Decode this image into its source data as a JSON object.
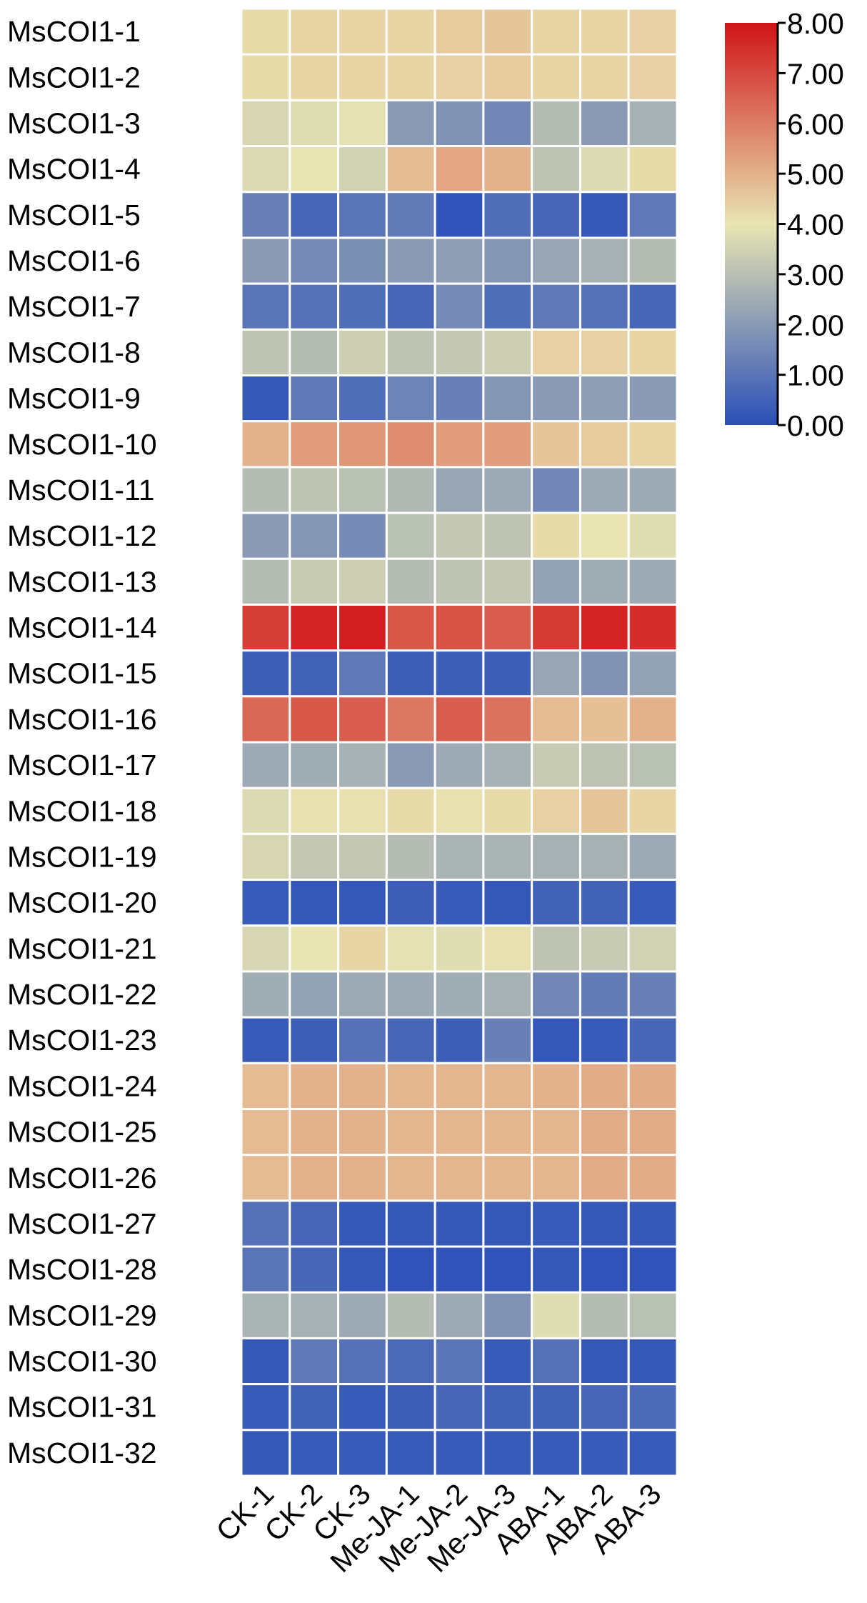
{
  "chart_data": {
    "type": "heatmap",
    "title": "",
    "xlabel": "",
    "ylabel": "",
    "columns": [
      "CK-1",
      "CK-2",
      "CK-3",
      "Me-JA-1",
      "Me-JA-2",
      "Me-JA-3",
      "ABA-1",
      "ABA-2",
      "ABA-3"
    ],
    "rows": [
      "MsCOI1-1",
      "MsCOI1-2",
      "MsCOI1-3",
      "MsCOI1-4",
      "MsCOI1-5",
      "MsCOI1-6",
      "MsCOI1-7",
      "MsCOI1-8",
      "MsCOI1-9",
      "MsCOI1-10",
      "MsCOI1-11",
      "MsCOI1-12",
      "MsCOI1-13",
      "MsCOI1-14",
      "MsCOI1-15",
      "MsCOI1-16",
      "MsCOI1-17",
      "MsCOI1-18",
      "MsCOI1-19",
      "MsCOI1-20",
      "MsCOI1-21",
      "MsCOI1-22",
      "MsCOI1-23",
      "MsCOI1-24",
      "MsCOI1-25",
      "MsCOI1-26",
      "MsCOI1-27",
      "MsCOI1-28",
      "MsCOI1-29",
      "MsCOI1-30",
      "MsCOI1-31",
      "MsCOI1-32"
    ],
    "values": [
      [
        4.2,
        4.3,
        4.3,
        4.3,
        4.5,
        4.6,
        4.3,
        4.3,
        4.4
      ],
      [
        4.2,
        4.3,
        4.3,
        4.3,
        4.4,
        4.5,
        4.3,
        4.3,
        4.4
      ],
      [
        3.6,
        3.8,
        3.9,
        2.0,
        1.8,
        1.5,
        2.9,
        2.0,
        2.6
      ],
      [
        3.7,
        4.0,
        3.5,
        4.8,
        5.2,
        5.0,
        3.1,
        3.7,
        4.2
      ],
      [
        1.3,
        0.6,
        1.0,
        1.2,
        0.1,
        0.8,
        0.6,
        0.2,
        1.1
      ],
      [
        2.0,
        1.6,
        1.7,
        2.0,
        2.1,
        1.9,
        2.3,
        2.6,
        2.9
      ],
      [
        1.0,
        0.9,
        0.8,
        0.6,
        1.6,
        0.8,
        1.1,
        0.9,
        0.6
      ],
      [
        3.1,
        2.9,
        3.4,
        3.1,
        3.2,
        3.4,
        4.4,
        4.4,
        4.3
      ],
      [
        0.2,
        1.1,
        0.8,
        1.4,
        1.3,
        1.9,
        2.0,
        2.1,
        2.0
      ],
      [
        5.0,
        5.4,
        5.5,
        5.7,
        5.4,
        5.4,
        4.6,
        4.5,
        4.3
      ],
      [
        2.9,
        3.1,
        3.0,
        2.8,
        2.3,
        2.4,
        1.5,
        2.4,
        2.4
      ],
      [
        2.0,
        1.9,
        1.6,
        3.0,
        3.2,
        3.1,
        4.2,
        4.0,
        3.8
      ],
      [
        2.9,
        3.3,
        3.4,
        2.9,
        3.1,
        3.2,
        2.2,
        2.5,
        2.4
      ],
      [
        7.2,
        7.7,
        7.8,
        6.7,
        6.8,
        6.6,
        7.3,
        7.7,
        7.5
      ],
      [
        0.4,
        0.5,
        1.1,
        0.4,
        0.4,
        0.4,
        2.3,
        1.8,
        2.2
      ],
      [
        6.4,
        6.7,
        6.6,
        6.1,
        6.6,
        6.2,
        4.8,
        4.7,
        5.0
      ],
      [
        2.4,
        2.5,
        2.6,
        2.0,
        2.4,
        2.6,
        3.3,
        3.1,
        3.0
      ],
      [
        3.7,
        4.1,
        4.1,
        4.2,
        4.1,
        4.2,
        4.4,
        4.6,
        4.3
      ],
      [
        3.6,
        3.2,
        3.2,
        2.9,
        2.7,
        2.7,
        2.6,
        2.6,
        2.4
      ],
      [
        0.3,
        0.2,
        0.2,
        0.4,
        0.3,
        0.2,
        0.5,
        0.5,
        0.3
      ],
      [
        3.6,
        4.0,
        4.3,
        3.9,
        3.8,
        4.1,
        3.1,
        3.3,
        3.5
      ],
      [
        2.5,
        2.2,
        2.4,
        2.4,
        2.5,
        2.6,
        1.5,
        1.2,
        1.3
      ],
      [
        0.3,
        0.4,
        0.9,
        0.6,
        0.4,
        1.3,
        0.2,
        0.3,
        0.6
      ],
      [
        4.8,
        5.0,
        5.0,
        4.9,
        4.9,
        4.9,
        5.0,
        5.1,
        5.1
      ],
      [
        4.8,
        5.0,
        5.0,
        4.9,
        4.9,
        4.9,
        4.9,
        5.1,
        5.1
      ],
      [
        4.8,
        5.0,
        5.0,
        4.9,
        4.9,
        4.9,
        4.9,
        5.1,
        5.1
      ],
      [
        0.9,
        0.6,
        0.2,
        0.2,
        0.2,
        0.2,
        0.3,
        0.2,
        0.2
      ],
      [
        1.0,
        0.6,
        0.2,
        0.1,
        0.1,
        0.1,
        0.2,
        0.1,
        0.1
      ],
      [
        2.7,
        2.6,
        2.4,
        2.9,
        2.4,
        1.8,
        3.8,
        2.9,
        3.0
      ],
      [
        0.2,
        1.1,
        0.9,
        0.7,
        1.0,
        0.3,
        0.9,
        0.2,
        0.2
      ],
      [
        0.3,
        0.5,
        0.3,
        0.4,
        0.6,
        0.5,
        0.5,
        0.6,
        0.7
      ],
      [
        0.2,
        0.3,
        0.3,
        0.3,
        0.3,
        0.3,
        0.3,
        0.3,
        0.3
      ]
    ],
    "color_scale": {
      "min": 0.0,
      "max": 8.0,
      "stops": [
        "#2a4fb8",
        "#e9e5b2",
        "#d01418"
      ],
      "ticks": [
        "0.00",
        "1.00",
        "2.00",
        "3.00",
        "4.00",
        "5.00",
        "6.00",
        "7.00",
        "8.00"
      ]
    },
    "grid": true,
    "legend": "top-right",
    "cell_border_color": "#ffffff"
  }
}
